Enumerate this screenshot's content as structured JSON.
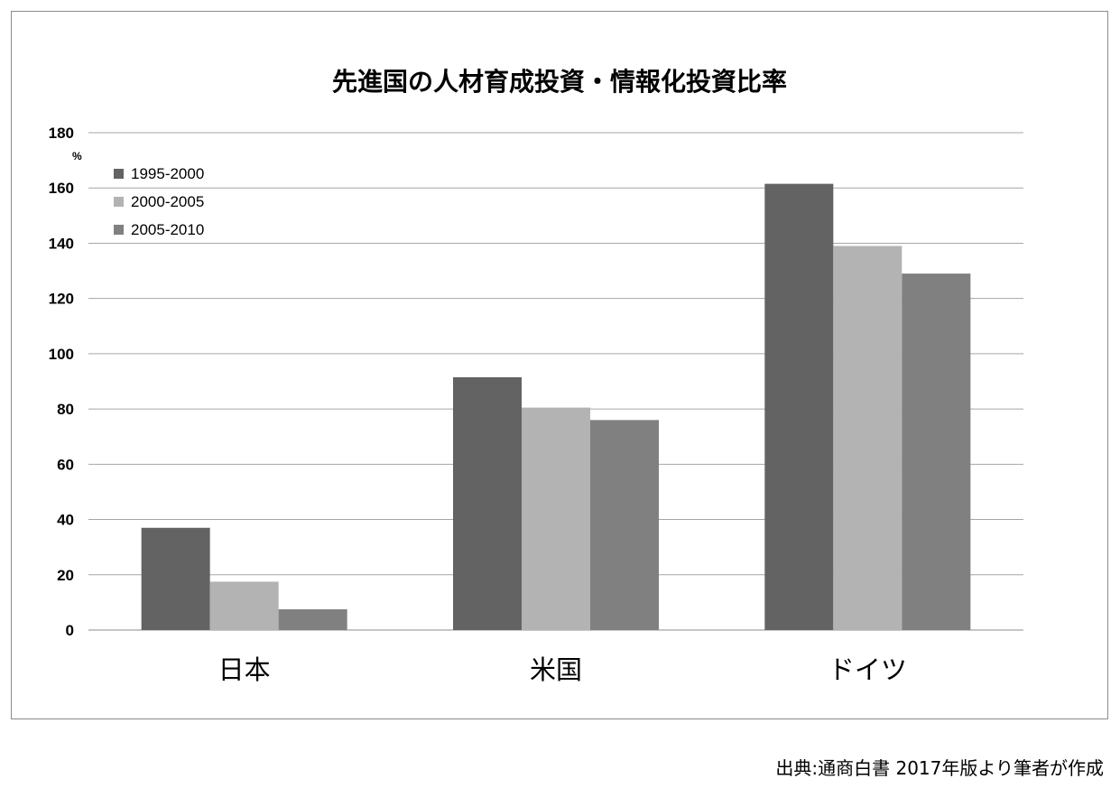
{
  "chart_data": {
    "type": "bar",
    "title": "先進国の人材育成投資・情報化投資比率",
    "unit": "%",
    "categories": [
      "日本",
      "米国",
      "ドイツ"
    ],
    "series": [
      {
        "name": "1995-2000",
        "color": "#636363",
        "values": [
          37,
          91.5,
          161.5
        ]
      },
      {
        "name": "2000-2005",
        "color": "#b3b3b3",
        "values": [
          17.5,
          80.5,
          139
        ]
      },
      {
        "name": "2005-2010",
        "color": "#808080",
        "values": [
          7.5,
          76,
          129
        ]
      }
    ],
    "ylim": [
      0,
      180
    ],
    "yticks": [
      0,
      20,
      40,
      60,
      80,
      100,
      120,
      140,
      160,
      180
    ],
    "grid": true,
    "legend_position": "top-left",
    "gridline_color": "#a6a6a6"
  },
  "source_note": "出典:通商白書 2017年版より筆者が作成"
}
